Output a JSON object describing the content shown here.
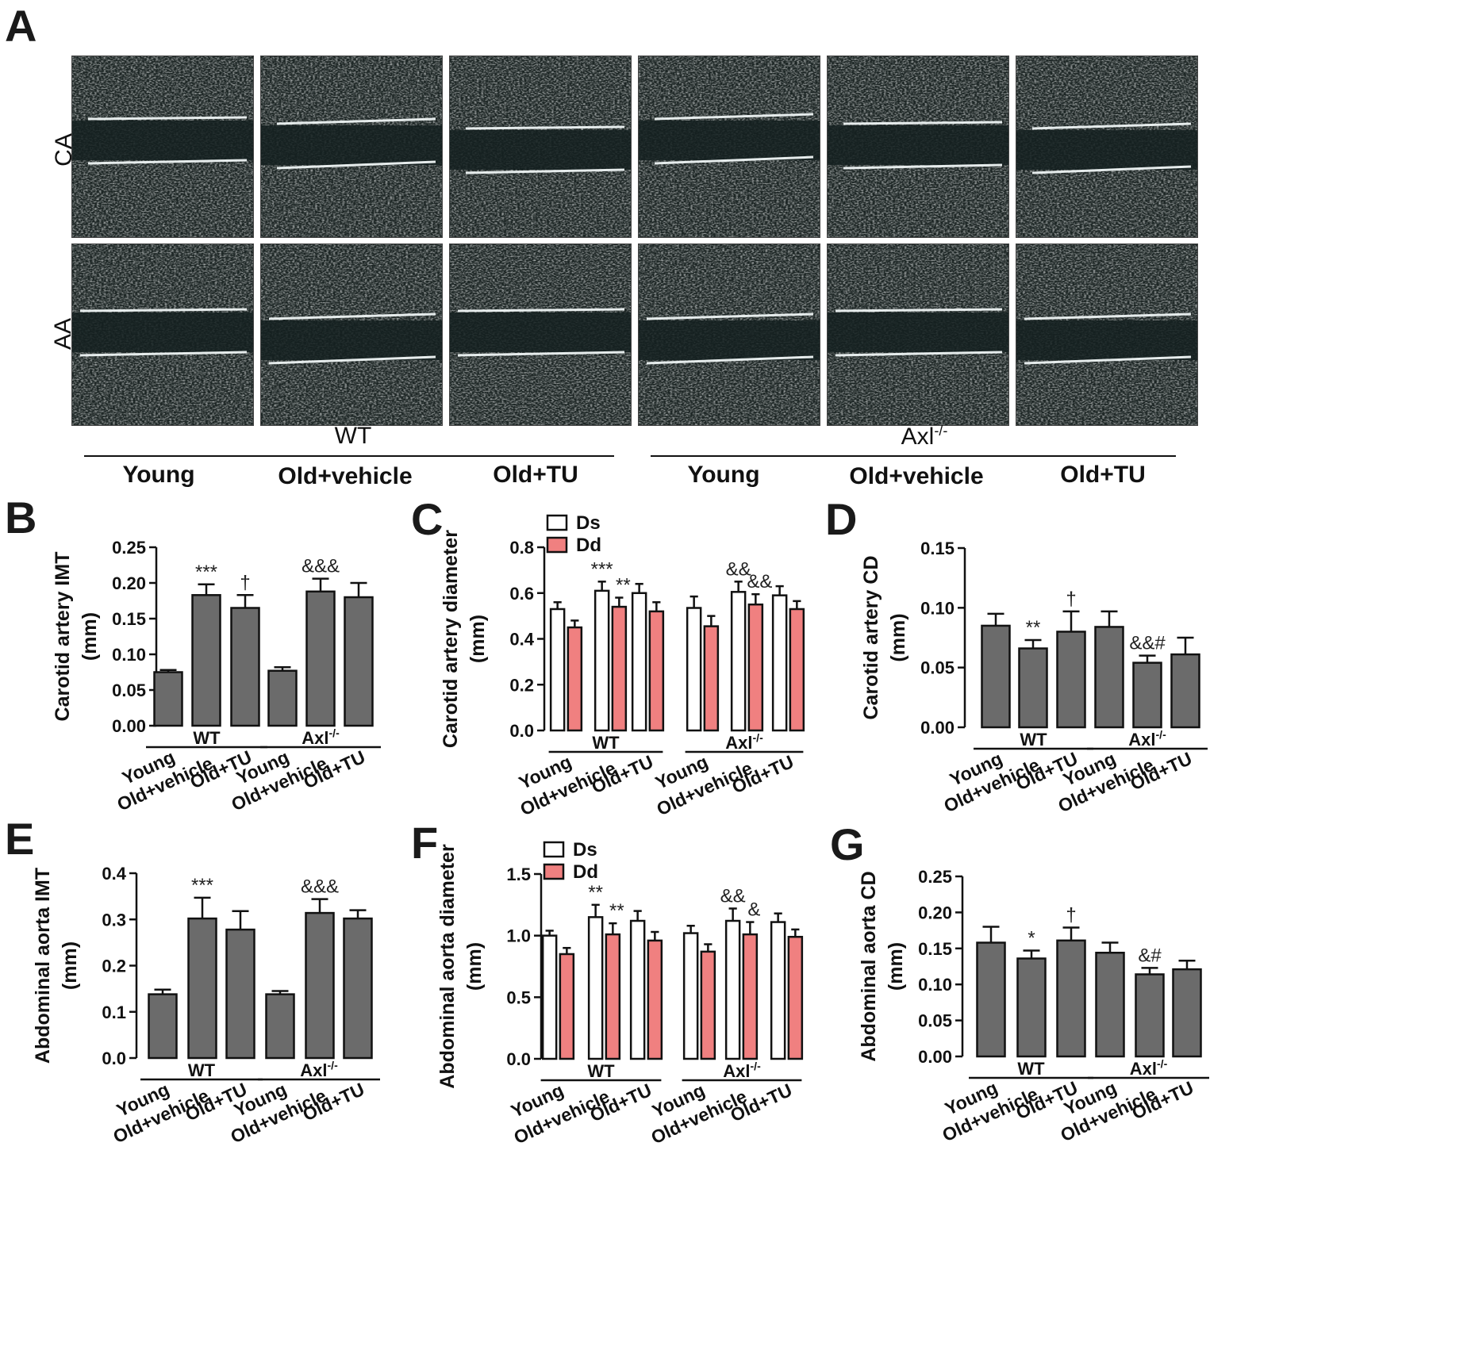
{
  "panel_a": {
    "letter": "A",
    "rows": [
      "CA",
      "AA"
    ],
    "groups": [
      {
        "label": "WT",
        "conditions": [
          "Young",
          "Old+vehicle",
          "Old+TU"
        ]
      },
      {
        "label": "Axl",
        "sup": "-/-",
        "conditions": [
          "Young",
          "Old+vehicle",
          "Old+TU"
        ]
      }
    ]
  },
  "chart_data": [
    {
      "letter": "B",
      "type": "bar",
      "ylabel": [
        "Carotid artery IMT",
        "(mm)"
      ],
      "yticks": [
        "0.00",
        "0.05",
        "0.10",
        "0.15",
        "0.20",
        "0.25"
      ],
      "ylim": [
        0,
        0.25
      ],
      "categories": [
        "Young",
        "Old+vehicle",
        "Old+TU",
        "Young",
        "Old+vehicle",
        "Old+TU"
      ],
      "groups": [
        "WT",
        "Axl"
      ],
      "group_sup": "-/-",
      "series": [
        {
          "values": [
            0.075,
            0.183,
            0.165,
            0.077,
            0.188,
            0.18
          ],
          "errors": [
            0.003,
            0.015,
            0.018,
            0.005,
            0.018,
            0.02
          ],
          "color": "#6b6b6b"
        }
      ],
      "annotations": [
        {
          "cat": 1,
          "text": "***"
        },
        {
          "cat": 2,
          "text": "†"
        },
        {
          "cat": 4,
          "text": "&&&"
        }
      ]
    },
    {
      "letter": "C",
      "type": "bar",
      "ylabel": [
        "Carotid artery diameter",
        "(mm)"
      ],
      "yticks": [
        "0.0",
        "0.2",
        "0.4",
        "0.6",
        "0.8"
      ],
      "ylim": [
        0,
        0.8
      ],
      "categories": [
        "Young",
        "Old+vehicle",
        "Old+TU",
        "Young",
        "Old+vehicle",
        "Old+TU"
      ],
      "groups": [
        "WT",
        "Axl"
      ],
      "group_sup": "-/-",
      "legend": [
        "Ds",
        "Dd"
      ],
      "series": [
        {
          "name": "Ds",
          "values": [
            0.53,
            0.61,
            0.6,
            0.535,
            0.605,
            0.59
          ],
          "errors": [
            0.03,
            0.04,
            0.04,
            0.05,
            0.045,
            0.04
          ],
          "color": "#ffffff"
        },
        {
          "name": "Dd",
          "values": [
            0.45,
            0.54,
            0.52,
            0.455,
            0.55,
            0.53
          ],
          "errors": [
            0.03,
            0.04,
            0.04,
            0.045,
            0.045,
            0.035
          ],
          "color": "#f08080"
        }
      ],
      "annotations": [
        {
          "cat": 1,
          "series": 0,
          "text": "***"
        },
        {
          "cat": 1,
          "series": 1,
          "text": "**"
        },
        {
          "cat": 4,
          "series": 0,
          "text": "&&"
        },
        {
          "cat": 4,
          "series": 1,
          "text": "&&"
        }
      ]
    },
    {
      "letter": "D",
      "type": "bar",
      "ylabel": [
        "Carotid artery CD",
        "(mm)"
      ],
      "yticks": [
        "0.00",
        "0.05",
        "0.10",
        "0.15"
      ],
      "ylim": [
        0,
        0.15
      ],
      "categories": [
        "Young",
        "Old+vehicle",
        "Old+TU",
        "Young",
        "Old+vehicle",
        "Old+TU"
      ],
      "groups": [
        "WT",
        "Axl"
      ],
      "group_sup": "-/-",
      "series": [
        {
          "values": [
            0.085,
            0.066,
            0.08,
            0.084,
            0.054,
            0.061
          ],
          "errors": [
            0.01,
            0.007,
            0.017,
            0.013,
            0.006,
            0.014
          ],
          "color": "#6b6b6b"
        }
      ],
      "annotations": [
        {
          "cat": 1,
          "text": "**"
        },
        {
          "cat": 2,
          "text": "†"
        },
        {
          "cat": 4,
          "text": "&&#"
        }
      ]
    },
    {
      "letter": "E",
      "type": "bar",
      "ylabel": [
        "Abdominal aorta IMT",
        "(mm)"
      ],
      "yticks": [
        "0.0",
        "0.1",
        "0.2",
        "0.3",
        "0.4"
      ],
      "ylim": [
        0,
        0.4
      ],
      "categories": [
        "Young",
        "Old+vehicle",
        "Old+TU",
        "Young",
        "Old+vehicle",
        "Old+TU"
      ],
      "groups": [
        "WT",
        "Axl"
      ],
      "group_sup": "-/-",
      "series": [
        {
          "values": [
            0.138,
            0.302,
            0.278,
            0.138,
            0.314,
            0.302
          ],
          "errors": [
            0.01,
            0.045,
            0.04,
            0.007,
            0.03,
            0.018
          ],
          "color": "#6b6b6b"
        }
      ],
      "annotations": [
        {
          "cat": 1,
          "text": "***"
        },
        {
          "cat": 4,
          "text": "&&&"
        }
      ]
    },
    {
      "letter": "F",
      "type": "bar",
      "ylabel": [
        "Abdominal aorta diameter",
        "(mm)"
      ],
      "yticks": [
        "0.0",
        "0.5",
        "1.0",
        "1.5"
      ],
      "ylim": [
        0,
        1.5
      ],
      "categories": [
        "Young",
        "Old+vehicle",
        "Old+TU",
        "Young",
        "Old+vehicle",
        "Old+TU"
      ],
      "groups": [
        "WT",
        "Axl"
      ],
      "group_sup": "-/-",
      "legend": [
        "Ds",
        "Dd"
      ],
      "series": [
        {
          "name": "Ds",
          "values": [
            1.0,
            1.15,
            1.12,
            1.02,
            1.12,
            1.11
          ],
          "errors": [
            0.04,
            0.1,
            0.08,
            0.06,
            0.1,
            0.07
          ],
          "color": "#ffffff"
        },
        {
          "name": "Dd",
          "values": [
            0.85,
            1.01,
            0.96,
            0.87,
            1.01,
            0.99
          ],
          "errors": [
            0.05,
            0.09,
            0.07,
            0.06,
            0.1,
            0.06
          ],
          "color": "#f08080"
        }
      ],
      "annotations": [
        {
          "cat": 1,
          "series": 0,
          "text": "**"
        },
        {
          "cat": 1,
          "series": 1,
          "text": "**"
        },
        {
          "cat": 4,
          "series": 0,
          "text": "&&"
        },
        {
          "cat": 4,
          "series": 1,
          "text": "&"
        }
      ]
    },
    {
      "letter": "G",
      "type": "bar",
      "ylabel": [
        "Abdominal aorta CD",
        "(mm)"
      ],
      "yticks": [
        "0.00",
        "0.05",
        "0.10",
        "0.15",
        "0.20",
        "0.25"
      ],
      "ylim": [
        0,
        0.25
      ],
      "categories": [
        "Young",
        "Old+vehicle",
        "Old+TU",
        "Young",
        "Old+vehicle",
        "Old+TU"
      ],
      "groups": [
        "WT",
        "Axl"
      ],
      "group_sup": "-/-",
      "series": [
        {
          "values": [
            0.158,
            0.136,
            0.161,
            0.144,
            0.114,
            0.121
          ],
          "errors": [
            0.022,
            0.011,
            0.018,
            0.014,
            0.009,
            0.012
          ],
          "color": "#6b6b6b"
        }
      ],
      "annotations": [
        {
          "cat": 1,
          "text": "*"
        },
        {
          "cat": 2,
          "text": "†"
        },
        {
          "cat": 4,
          "text": "&#"
        }
      ]
    }
  ]
}
